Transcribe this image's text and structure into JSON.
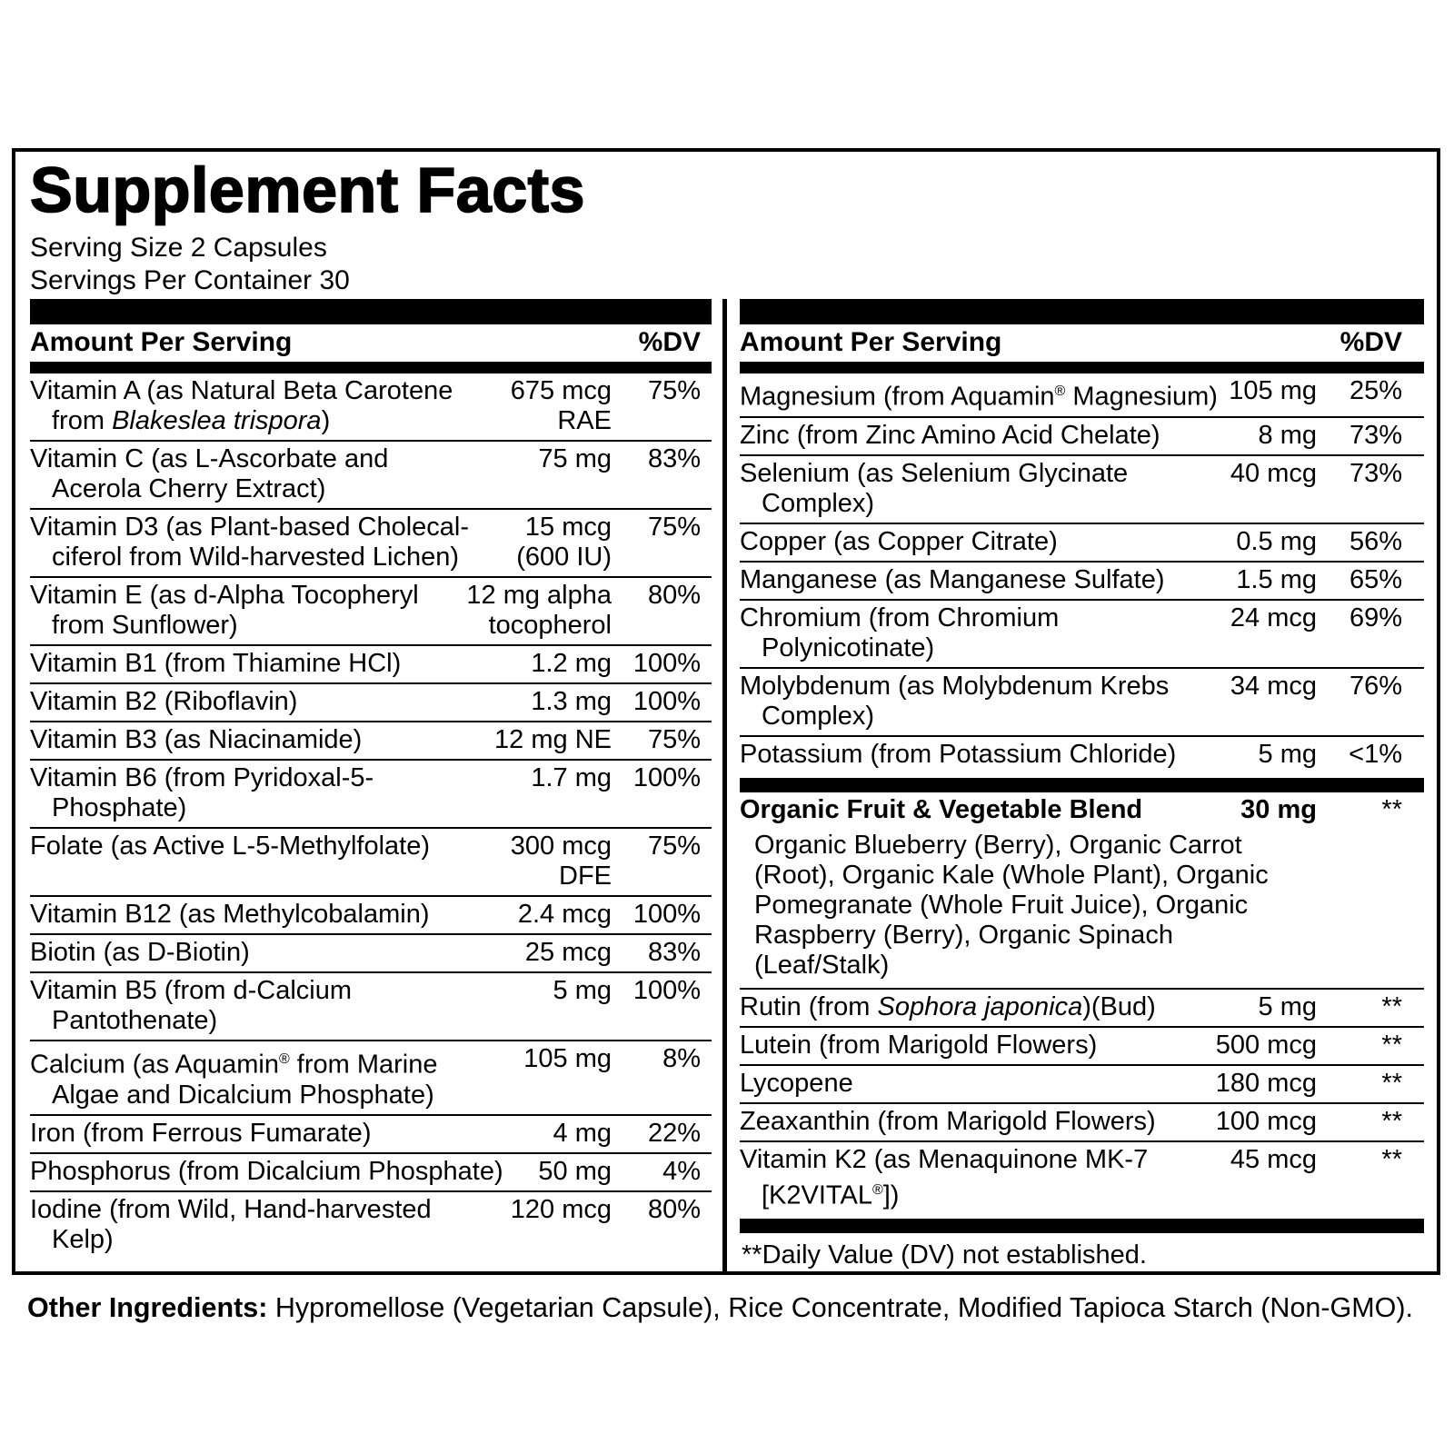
{
  "title": "Supplement Facts",
  "serving_size": "Serving Size 2 Capsules",
  "servings_per_container": "Servings Per Container 30",
  "column_header": {
    "amount": "Amount Per Serving",
    "dv": "%DV"
  },
  "left_rows": [
    {
      "name": [
        "Vitamin A (as Natural Beta Carotene\nfrom ",
        {
          "i": "Blakeslea trispora"
        },
        ")"
      ],
      "amount": "675 mcg\nRAE",
      "dv": "75%"
    },
    {
      "name": "Vitamin C (as L-Ascorbate and\nAcerola Cherry Extract)",
      "amount": "75 mg",
      "dv": "83%"
    },
    {
      "name": "Vitamin D3 (as Plant-based Cholecal-\nciferol from Wild-harvested Lichen)",
      "amount": "15 mcg\n(600 IU)",
      "dv": "75%"
    },
    {
      "name": "Vitamin E (as d-Alpha Tocopheryl\nfrom Sunflower)",
      "amount": "12 mg alpha\ntocopherol",
      "dv": "80%"
    },
    {
      "name": "Vitamin B1 (from Thiamine HCl)",
      "amount": "1.2 mg",
      "dv": "100%"
    },
    {
      "name": "Vitamin B2 (Riboflavin)",
      "amount": "1.3 mg",
      "dv": "100%"
    },
    {
      "name": "Vitamin B3 (as Niacinamide)",
      "amount": "12 mg NE",
      "dv": "75%"
    },
    {
      "name": "Vitamin B6 (from Pyridoxal-5-\nPhosphate)",
      "amount": "1.7 mg",
      "dv": "100%"
    },
    {
      "name": "Folate (as Active L-5-Methylfolate)",
      "amount": "300 mcg\nDFE",
      "dv": "75%",
      "tall": true
    },
    {
      "name": "Vitamin B12 (as Methylcobalamin)",
      "amount": "2.4 mcg",
      "dv": "100%"
    },
    {
      "name": "Biotin (as D-Biotin)",
      "amount": "25 mcg",
      "dv": "83%"
    },
    {
      "name": "Vitamin B5 (from d-Calcium\nPantothenate)",
      "amount": "5 mg",
      "dv": "100%"
    },
    {
      "name": [
        "Calcium (as Aquamin",
        {
          "s": "®"
        },
        " from Marine\nAlgae and Dicalcium Phosphate)"
      ],
      "amount": "105 mg",
      "dv": "8%"
    },
    {
      "name": "Iron (from Ferrous Fumarate)",
      "amount": "4 mg",
      "dv": "22%"
    },
    {
      "name": "Phosphorus (from Dicalcium Phosphate)",
      "amount": "50 mg",
      "dv": "4%"
    },
    {
      "name": "Iodine (from Wild, Hand-harvested\nKelp)",
      "amount": "120 mcg",
      "dv": "80%"
    }
  ],
  "right_rows": [
    {
      "name": [
        "Magnesium (from Aquamin",
        {
          "s": "®"
        },
        " Magnesium)"
      ],
      "amount": "105 mg",
      "dv": "25%"
    },
    {
      "name": "Zinc (from Zinc Amino Acid Chelate)",
      "amount": "8 mg",
      "dv": "73%"
    },
    {
      "name": "Selenium (as Selenium Glycinate\nComplex)",
      "amount": "40 mcg",
      "dv": "73%"
    },
    {
      "name": "Copper (as Copper Citrate)",
      "amount": "0.5 mg",
      "dv": "56%"
    },
    {
      "name": "Manganese (as Manganese Sulfate)",
      "amount": "1.5 mg",
      "dv": "65%"
    },
    {
      "name": "Chromium (from Chromium\nPolynicotinate)",
      "amount": "24 mcg",
      "dv": "69%"
    },
    {
      "name": "Molybdenum (as Molybdenum Krebs\nComplex)",
      "amount": "34 mcg",
      "dv": "76%"
    },
    {
      "name": "Potassium (from Potassium Chloride)",
      "amount": "5 mg",
      "dv": "<1%"
    }
  ],
  "blend_rows": [
    {
      "name": "Organic Fruit & Vegetable Blend",
      "amount": "30 mg",
      "dv": "**",
      "b": true
    },
    {
      "sub": "Organic Blueberry (Berry), Organic Carrot\n(Root), Organic Kale (Whole Plant), Organic\nPomegranate (Whole Fruit Juice), Organic\nRaspberry (Berry), Organic Spinach\n(Leaf/Stalk)"
    },
    {
      "name": [
        "Rutin (from ",
        {
          "i": "Sophora japonica"
        },
        ")(Bud)"
      ],
      "amount": "5 mg",
      "dv": "**"
    },
    {
      "name": "Lutein (from Marigold Flowers)",
      "amount": "500 mcg",
      "dv": "**"
    },
    {
      "name": "Lycopene",
      "amount": "180 mcg",
      "dv": "**"
    },
    {
      "name": "Zeaxanthin (from Marigold Flowers)",
      "amount": "100 mcg",
      "dv": "**"
    },
    {
      "name": [
        "Vitamin K2 (as Menaquinone MK-7\n[K2VITAL",
        {
          "s": "®"
        },
        "])"
      ],
      "amount": "45 mcg",
      "dv": "**"
    }
  ],
  "footnote": "**Daily Value (DV) not established.",
  "other_ingredients_label": "Other Ingredients:",
  "other_ingredients_text": " Hypromellose (Vegetarian Capsule), Rice Concentrate, Modified Tapioca Starch (Non-GMO).",
  "colors": {
    "text": "#000000",
    "background": "#ffffff"
  }
}
